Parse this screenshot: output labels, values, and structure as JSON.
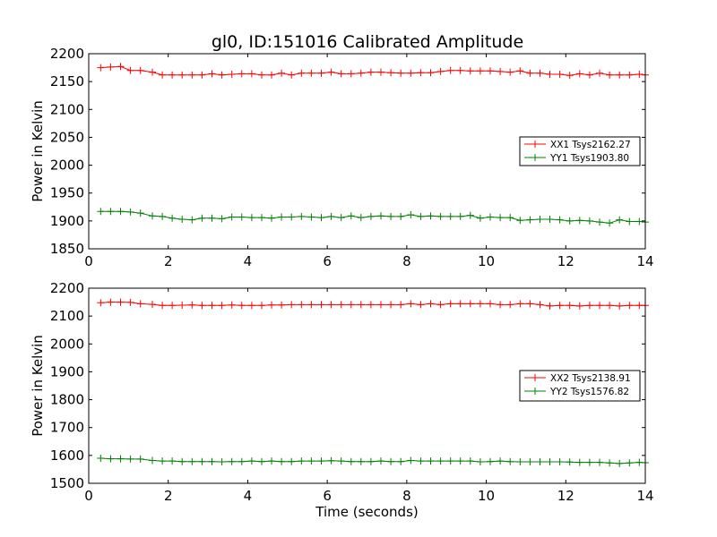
{
  "title": "gl0, ID:151016 Calibrated Amplitude",
  "chart_data": [
    {
      "type": "line",
      "title": "gl0, ID:151016 Calibrated Amplitude",
      "xlabel": "",
      "ylabel": "Power in Kelvin",
      "xlim": [
        0,
        14
      ],
      "ylim": [
        1850,
        2200
      ],
      "xticks": [
        0,
        2,
        4,
        6,
        8,
        10,
        12,
        14
      ],
      "yticks": [
        1850,
        1900,
        1950,
        2000,
        2050,
        2100,
        2150,
        2200
      ],
      "legend_position": "right",
      "x": [
        0.3,
        0.55,
        0.8,
        1.05,
        1.3,
        1.6,
        1.85,
        2.1,
        2.35,
        2.6,
        2.85,
        3.1,
        3.35,
        3.6,
        3.85,
        4.1,
        4.35,
        4.6,
        4.85,
        5.1,
        5.35,
        5.6,
        5.85,
        6.1,
        6.35,
        6.6,
        6.85,
        7.1,
        7.35,
        7.6,
        7.85,
        8.1,
        8.35,
        8.6,
        8.85,
        9.1,
        9.35,
        9.6,
        9.85,
        10.1,
        10.35,
        10.6,
        10.85,
        11.1,
        11.35,
        11.6,
        11.85,
        12.1,
        12.35,
        12.6,
        12.85,
        13.1,
        13.35,
        13.6,
        13.85,
        14.0
      ],
      "series": [
        {
          "name": "XX1 Tsys2162.27",
          "color": "#ff0000",
          "values": [
            2175,
            2176,
            2177,
            2170,
            2170,
            2167,
            2162,
            2162,
            2162,
            2162,
            2162,
            2164,
            2162,
            2163,
            2164,
            2164,
            2162,
            2162,
            2165,
            2162,
            2165,
            2165,
            2165,
            2167,
            2164,
            2164,
            2165,
            2167,
            2167,
            2166,
            2165,
            2165,
            2166,
            2166,
            2168,
            2170,
            2170,
            2169,
            2169,
            2169,
            2168,
            2167,
            2169,
            2165,
            2165,
            2163,
            2163,
            2161,
            2164,
            2162,
            2165,
            2162,
            2162,
            2162,
            2163,
            2162
          ]
        },
        {
          "name": "YY1 Tsys1903.80",
          "color": "#008000",
          "values": [
            1917,
            1917,
            1917,
            1916,
            1914,
            1909,
            1908,
            1905,
            1903,
            1902,
            1905,
            1905,
            1904,
            1907,
            1907,
            1906,
            1906,
            1905,
            1907,
            1907,
            1908,
            1907,
            1906,
            1908,
            1906,
            1909,
            1906,
            1908,
            1909,
            1908,
            1908,
            1911,
            1908,
            1909,
            1908,
            1908,
            1908,
            1910,
            1905,
            1907,
            1906,
            1906,
            1901,
            1902,
            1903,
            1903,
            1902,
            1900,
            1901,
            1900,
            1898,
            1896,
            1902,
            1899,
            1899,
            1898
          ]
        }
      ]
    },
    {
      "type": "line",
      "title": "",
      "xlabel": "Time (seconds)",
      "ylabel": "Power in Kelvin",
      "xlim": [
        0,
        14
      ],
      "ylim": [
        1500,
        2200
      ],
      "xticks": [
        0,
        2,
        4,
        6,
        8,
        10,
        12,
        14
      ],
      "yticks": [
        1500,
        1600,
        1700,
        1800,
        1900,
        2000,
        2100,
        2200
      ],
      "legend_position": "right",
      "x": [
        0.3,
        0.55,
        0.8,
        1.05,
        1.3,
        1.6,
        1.85,
        2.1,
        2.35,
        2.6,
        2.85,
        3.1,
        3.35,
        3.6,
        3.85,
        4.1,
        4.35,
        4.6,
        4.85,
        5.1,
        5.35,
        5.6,
        5.85,
        6.1,
        6.35,
        6.6,
        6.85,
        7.1,
        7.35,
        7.6,
        7.85,
        8.1,
        8.35,
        8.6,
        8.85,
        9.1,
        9.35,
        9.6,
        9.85,
        10.1,
        10.35,
        10.6,
        10.85,
        11.1,
        11.35,
        11.6,
        11.85,
        12.1,
        12.35,
        12.6,
        12.85,
        13.1,
        13.35,
        13.6,
        13.85,
        14.0
      ],
      "series": [
        {
          "name": "XX2 Tsys2138.91",
          "color": "#ff0000",
          "values": [
            2148,
            2150,
            2150,
            2149,
            2144,
            2142,
            2138,
            2138,
            2139,
            2140,
            2138,
            2138,
            2138,
            2140,
            2138,
            2138,
            2138,
            2140,
            2140,
            2141,
            2141,
            2141,
            2141,
            2141,
            2141,
            2141,
            2141,
            2141,
            2141,
            2141,
            2141,
            2144,
            2141,
            2144,
            2141,
            2144,
            2144,
            2144,
            2144,
            2144,
            2141,
            2141,
            2144,
            2144,
            2141,
            2136,
            2138,
            2138,
            2136,
            2138,
            2138,
            2138,
            2136,
            2138,
            2138,
            2138
          ]
        },
        {
          "name": "YY2 Tsys1576.82",
          "color": "#008000",
          "values": [
            1590,
            1588,
            1588,
            1587,
            1587,
            1582,
            1580,
            1580,
            1578,
            1578,
            1578,
            1578,
            1577,
            1578,
            1578,
            1580,
            1578,
            1580,
            1578,
            1578,
            1580,
            1580,
            1580,
            1581,
            1580,
            1578,
            1578,
            1578,
            1580,
            1578,
            1578,
            1582,
            1580,
            1580,
            1580,
            1580,
            1580,
            1580,
            1577,
            1578,
            1580,
            1578,
            1577,
            1577,
            1577,
            1577,
            1577,
            1576,
            1575,
            1575,
            1575,
            1573,
            1571,
            1573,
            1575,
            1574
          ]
        }
      ]
    }
  ]
}
